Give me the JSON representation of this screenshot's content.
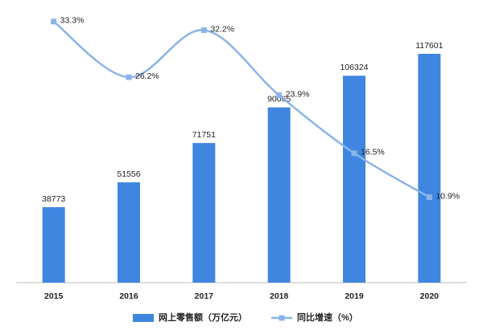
{
  "chart_data": {
    "type": "bar-line",
    "categories": [
      "2015",
      "2016",
      "2017",
      "2018",
      "2019",
      "2020"
    ],
    "series": [
      {
        "name": "网上零售额（万亿元）",
        "type": "bar",
        "color": "#3f86e0",
        "values": [
          38773,
          51556,
          71751,
          90065,
          106324,
          117601
        ]
      },
      {
        "name": "同比增速（%）",
        "type": "line",
        "axis": "y2",
        "color": "#8ab4e8",
        "values": [
          33.3,
          26.2,
          32.2,
          23.9,
          16.5,
          10.9
        ],
        "value_labels": [
          "33.3%",
          "26.2%",
          "32.2%",
          "23.9%",
          "16.5%",
          "10.9%"
        ]
      }
    ],
    "ylim": [
      0,
      137000
    ],
    "y2lim": [
      0,
      34
    ],
    "legend": "bottom"
  }
}
